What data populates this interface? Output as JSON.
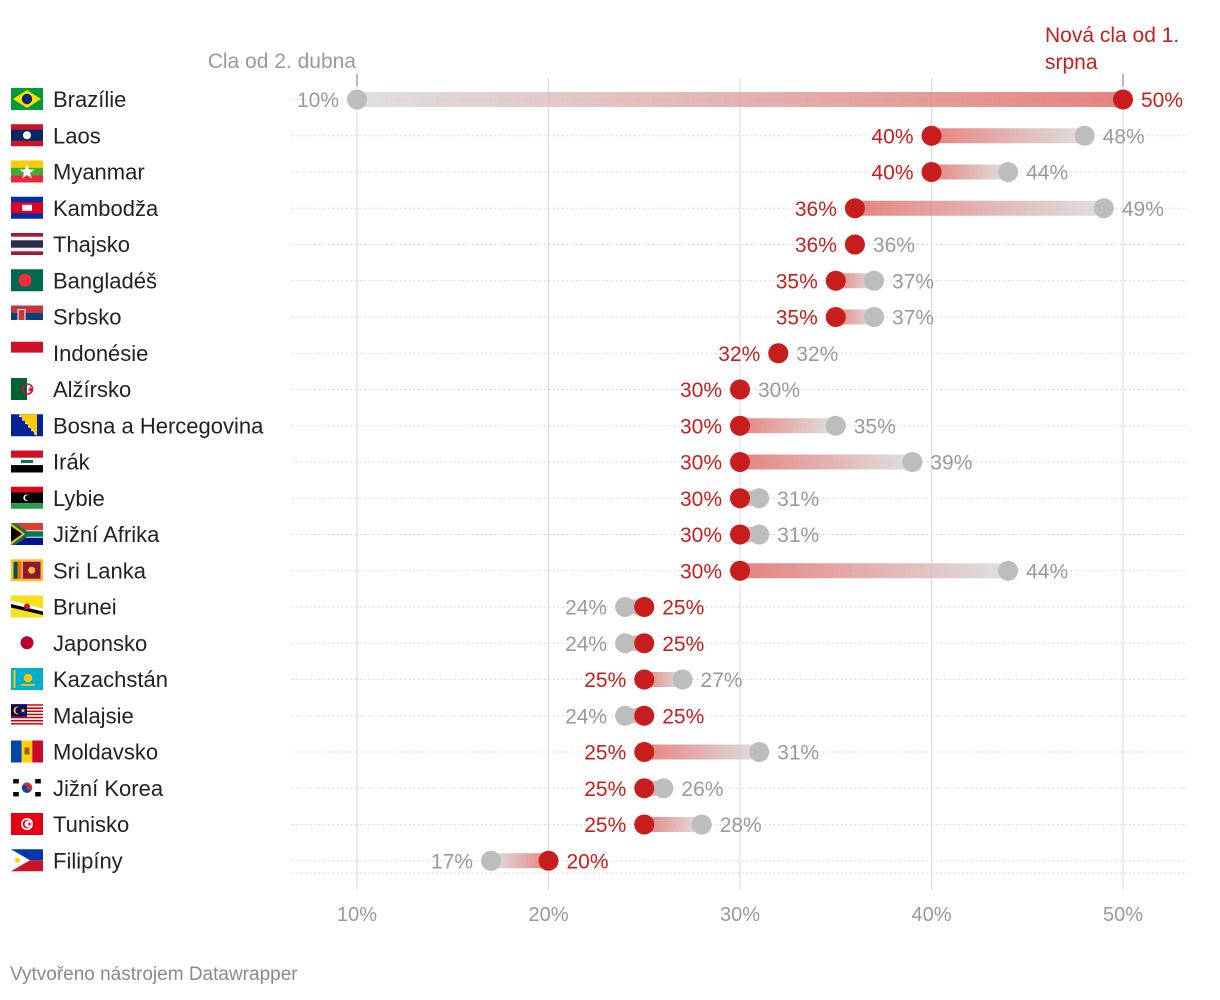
{
  "chart_data": {
    "type": "dumbbell",
    "series": [
      {
        "name": "Cla od 2. dubna",
        "key": "old",
        "color": "#bdbdbd"
      },
      {
        "name": "Nová cla od 1. srpna",
        "key": "new",
        "color": "#c71e1d"
      }
    ],
    "legend_old": "Cla od 2. dubna",
    "legend_new_lines": [
      "Nová cla od 1.",
      "srpna"
    ],
    "xlim": [
      10,
      50
    ],
    "xticks": [
      10,
      20,
      30,
      40,
      50
    ],
    "tick_suffix": "%",
    "rows": [
      {
        "country": "Brazílie",
        "flag": "brazil",
        "old": 10,
        "new": 50
      },
      {
        "country": "Laos",
        "flag": "laos",
        "old": 48,
        "new": 40
      },
      {
        "country": "Myanmar",
        "flag": "myanmar",
        "old": 44,
        "new": 40
      },
      {
        "country": "Kambodža",
        "flag": "cambodia",
        "old": 49,
        "new": 36
      },
      {
        "country": "Thajsko",
        "flag": "thailand",
        "old": 36,
        "new": 36
      },
      {
        "country": "Bangladéš",
        "flag": "bangladesh",
        "old": 37,
        "new": 35
      },
      {
        "country": "Srbsko",
        "flag": "serbia",
        "old": 37,
        "new": 35
      },
      {
        "country": "Indonésie",
        "flag": "indonesia",
        "old": 32,
        "new": 32
      },
      {
        "country": "Alžírsko",
        "flag": "algeria",
        "old": 30,
        "new": 30
      },
      {
        "country": "Bosna a Hercegovina",
        "flag": "bosnia",
        "old": 35,
        "new": 30
      },
      {
        "country": "Irák",
        "flag": "iraq",
        "old": 39,
        "new": 30
      },
      {
        "country": "Lybie",
        "flag": "libya",
        "old": 31,
        "new": 30
      },
      {
        "country": "Jižní Afrika",
        "flag": "south-africa",
        "old": 31,
        "new": 30
      },
      {
        "country": "Sri Lanka",
        "flag": "sri-lanka",
        "old": 44,
        "new": 30
      },
      {
        "country": "Brunei",
        "flag": "brunei",
        "old": 24,
        "new": 25
      },
      {
        "country": "Japonsko",
        "flag": "japan",
        "old": 24,
        "new": 25
      },
      {
        "country": "Kazachstán",
        "flag": "kazakhstan",
        "old": 27,
        "new": 25
      },
      {
        "country": "Malajsie",
        "flag": "malaysia",
        "old": 24,
        "new": 25
      },
      {
        "country": "Moldavsko",
        "flag": "moldova",
        "old": 31,
        "new": 25
      },
      {
        "country": "Jižní Korea",
        "flag": "south-korea",
        "old": 26,
        "new": 25
      },
      {
        "country": "Tunisko",
        "flag": "tunisia",
        "old": 28,
        "new": 25
      },
      {
        "country": "Filipíny",
        "flag": "philippines",
        "old": 17,
        "new": 20
      }
    ]
  },
  "credit": "Vytvořeno nástrojem Datawrapper",
  "colors": {
    "old": "#bdbdbd",
    "old_text": "#9a9a9a",
    "new": "#c71e1d",
    "grid": "#d9d9d9",
    "label": "#222222"
  }
}
